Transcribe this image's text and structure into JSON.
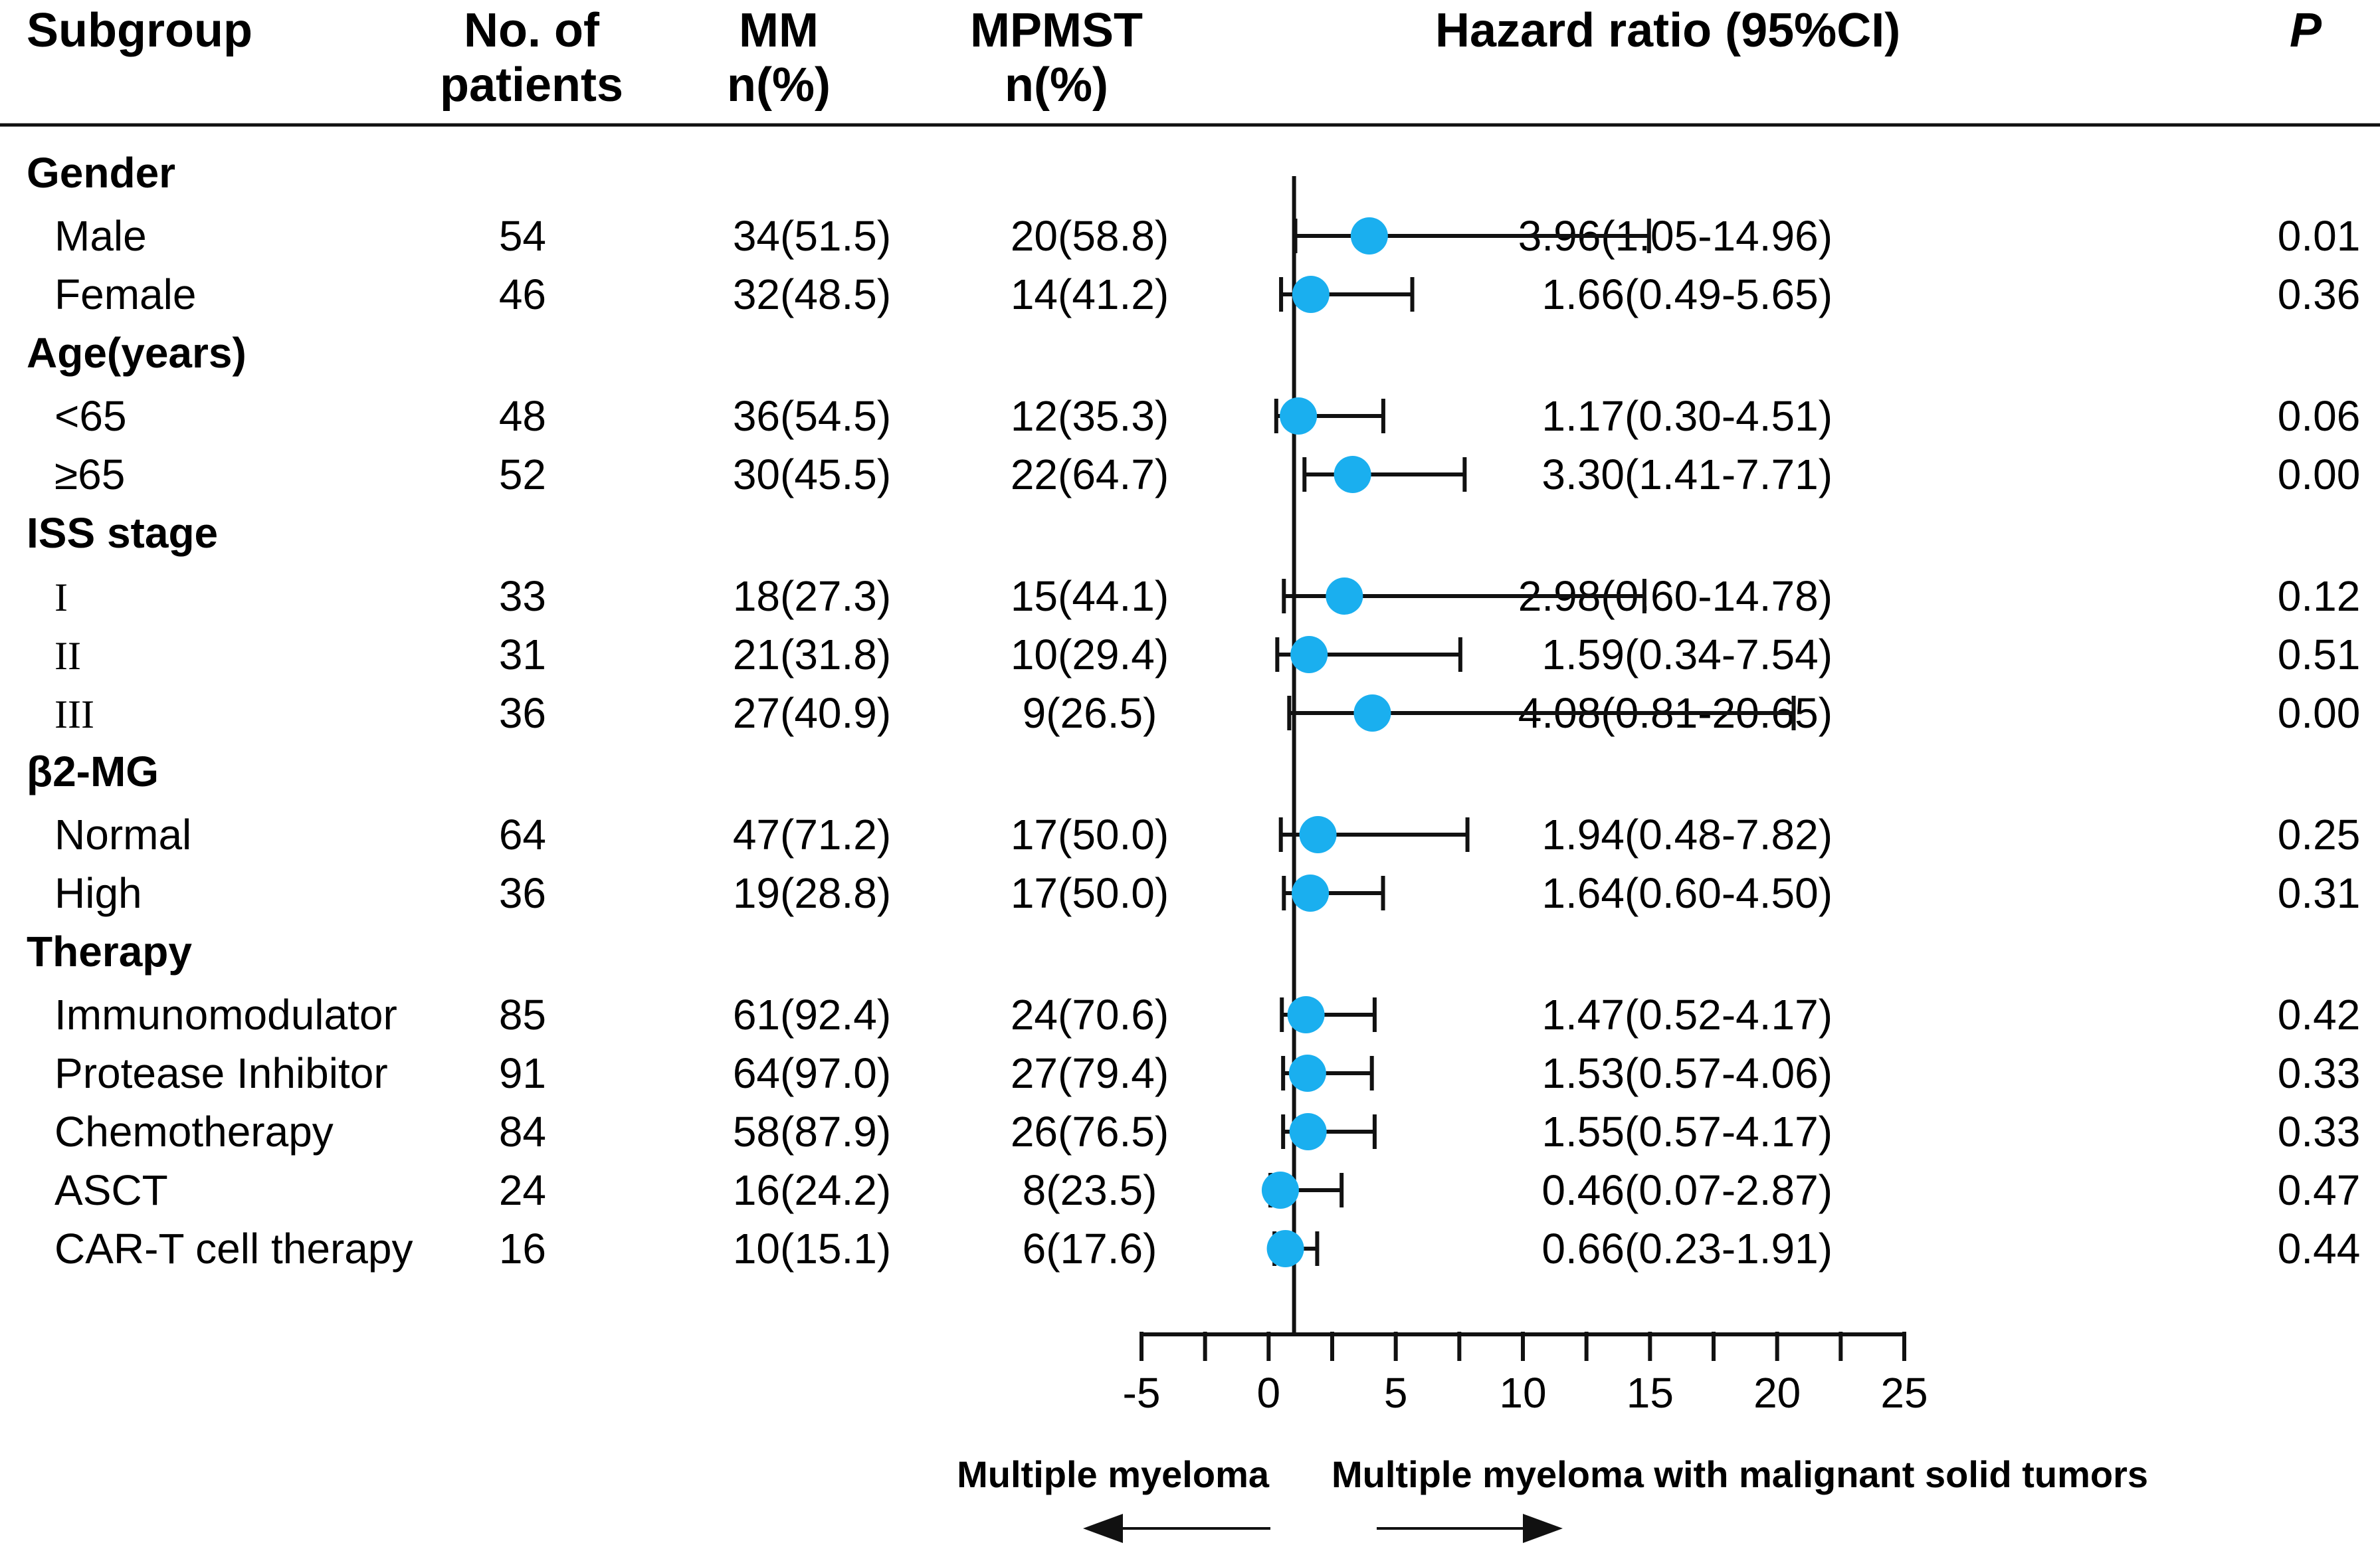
{
  "headers": {
    "subgroup": "Subgroup",
    "patients_line1": "No. of",
    "patients_line2": "patients",
    "mm_line1": "MM",
    "mm_line2": "n(%)",
    "mpmst_line1": "MPMST",
    "mpmst_line2": "n(%)",
    "hr": "Hazard ratio  (95%CI)",
    "p": "P"
  },
  "groups": [
    {
      "label": "Gender",
      "rows": [
        {
          "label": "Male",
          "n": "54",
          "mm": "34(51.5)",
          "mpmst": "20(58.8)",
          "hr": 3.96,
          "lo": 1.05,
          "hi": 14.96,
          "hr_text": "3.96(1.05-14.96)",
          "p": "0.01"
        },
        {
          "label": "Female",
          "n": "46",
          "mm": "32(48.5)",
          "mpmst": "14(41.2)",
          "hr": 1.66,
          "lo": 0.49,
          "hi": 5.65,
          "hr_text": "1.66(0.49-5.65)",
          "p": "0.36"
        }
      ]
    },
    {
      "label": "Age(years)",
      "rows": [
        {
          "label": "<65",
          "n": "48",
          "mm": "36(54.5)",
          "mpmst": "12(35.3)",
          "hr": 1.17,
          "lo": 0.3,
          "hi": 4.51,
          "hr_text": "1.17(0.30-4.51)",
          "p": "0.06"
        },
        {
          "label": "≥65",
          "n": "52",
          "mm": "30(45.5)",
          "mpmst": "22(64.7)",
          "hr": 3.3,
          "lo": 1.41,
          "hi": 7.71,
          "hr_text": "3.30(1.41-7.71)",
          "p": "0.00"
        }
      ]
    },
    {
      "label": "ISS stage",
      "rows": [
        {
          "label": "I",
          "roman": true,
          "n": "33",
          "mm": "18(27.3)",
          "mpmst": "15(44.1)",
          "hr": 2.98,
          "lo": 0.6,
          "hi": 14.78,
          "hr_text": "2.98(0.60-14.78)",
          "p": "0.12"
        },
        {
          "label": "II",
          "roman": true,
          "n": "31",
          "mm": "21(31.8)",
          "mpmst": "10(29.4)",
          "hr": 1.59,
          "lo": 0.34,
          "hi": 7.54,
          "hr_text": "1.59(0.34-7.54)",
          "p": "0.51"
        },
        {
          "label": "III",
          "roman": true,
          "n": "36",
          "mm": "27(40.9)",
          "mpmst": "9(26.5)",
          "hr": 4.08,
          "lo": 0.81,
          "hi": 20.65,
          "hr_text": "4.08(0.81-20.65)",
          "p": "0.00"
        }
      ]
    },
    {
      "label": "β2-MG",
      "rows": [
        {
          "label": "Normal",
          "n": "64",
          "mm": "47(71.2)",
          "mpmst": "17(50.0)",
          "hr": 1.94,
          "lo": 0.48,
          "hi": 7.82,
          "hr_text": "1.94(0.48-7.82)",
          "p": "0.25"
        },
        {
          "label": "High",
          "n": "36",
          "mm": "19(28.8)",
          "mpmst": "17(50.0)",
          "hr": 1.64,
          "lo": 0.6,
          "hi": 4.5,
          "hr_text": "1.64(0.60-4.50)",
          "p": "0.31"
        }
      ]
    },
    {
      "label": "Therapy",
      "rows": [
        {
          "label": "Immunomodulator",
          "n": "85",
          "mm": "61(92.4)",
          "mpmst": "24(70.6)",
          "hr": 1.47,
          "lo": 0.52,
          "hi": 4.17,
          "hr_text": "1.47(0.52-4.17)",
          "p": "0.42"
        },
        {
          "label": "Protease Inhibitor",
          "n": "91",
          "mm": "64(97.0)",
          "mpmst": "27(79.4)",
          "hr": 1.53,
          "lo": 0.57,
          "hi": 4.06,
          "hr_text": "1.53(0.57-4.06)",
          "p": "0.33"
        },
        {
          "label": "Chemotherapy",
          "n": "84",
          "mm": "58(87.9)",
          "mpmst": "26(76.5)",
          "hr": 1.55,
          "lo": 0.57,
          "hi": 4.17,
          "hr_text": "1.55(0.57-4.17)",
          "p": "0.33"
        },
        {
          "label": "ASCT",
          "n": "24",
          "mm": "16(24.2)",
          "mpmst": "8(23.5)",
          "hr": 0.46,
          "lo": 0.07,
          "hi": 2.87,
          "hr_text": "0.46(0.07-2.87)",
          "p": "0.47"
        },
        {
          "label": "CAR-T cell therapy",
          "n": "16",
          "mm": "10(15.1)",
          "mpmst": "6(17.6)",
          "hr": 0.66,
          "lo": 0.23,
          "hi": 1.91,
          "hr_text": "0.66(0.23-1.91)",
          "p": "0.44"
        }
      ]
    }
  ],
  "chart_data": {
    "type": "forest",
    "title": "",
    "xlabel": "Hazard ratio (95%CI)",
    "xlim": [
      -5,
      25
    ],
    "xticks": [
      -5,
      0,
      5,
      10,
      15,
      20,
      25
    ],
    "reference_line": 1,
    "categories": [
      "Male",
      "Female",
      "<65",
      "≥65",
      "I",
      "II",
      "III",
      "Normal",
      "High",
      "Immunomodulator",
      "Protease Inhibitor",
      "Chemotherapy",
      "ASCT",
      "CAR-T cell therapy"
    ],
    "values": [
      3.96,
      1.66,
      1.17,
      3.3,
      2.98,
      1.59,
      4.08,
      1.94,
      1.64,
      1.47,
      1.53,
      1.55,
      0.46,
      0.66
    ],
    "ci_lower": [
      1.05,
      0.49,
      0.3,
      1.41,
      0.6,
      0.34,
      0.81,
      0.48,
      0.6,
      0.52,
      0.57,
      0.57,
      0.07,
      0.23
    ],
    "ci_upper": [
      14.96,
      5.65,
      4.51,
      7.71,
      14.78,
      7.54,
      20.65,
      7.82,
      4.5,
      4.17,
      4.06,
      4.17,
      2.87,
      1.91
    ],
    "direction_left": "Multiple myeloma",
    "direction_right": "Multiple myeloma with malignant solid tumors"
  },
  "colors": {
    "marker": "#1AAFEF",
    "line": "#111111"
  }
}
